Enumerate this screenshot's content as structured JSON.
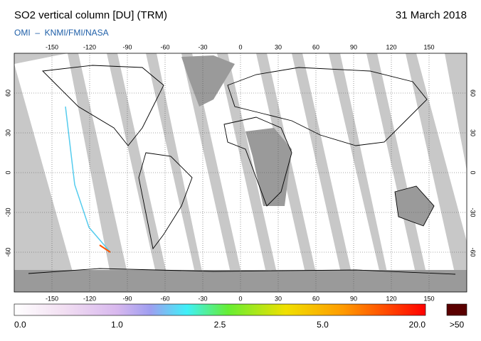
{
  "header": {
    "title": "SO2 vertical column [DU] (TRM)",
    "date": "31 March 2018",
    "credit": "OMI  –  KNMI/FMI/NASA"
  },
  "map": {
    "lon_ticks": [
      -150,
      -120,
      -90,
      -60,
      -30,
      0,
      30,
      60,
      90,
      120,
      150
    ],
    "lat_ticks": [
      60,
      30,
      0,
      -30,
      -60
    ]
  },
  "colorbar": {
    "labels": [
      "0.0",
      "1.0",
      "2.5",
      "5.0",
      "20.0"
    ],
    "over_label": ">50"
  }
}
